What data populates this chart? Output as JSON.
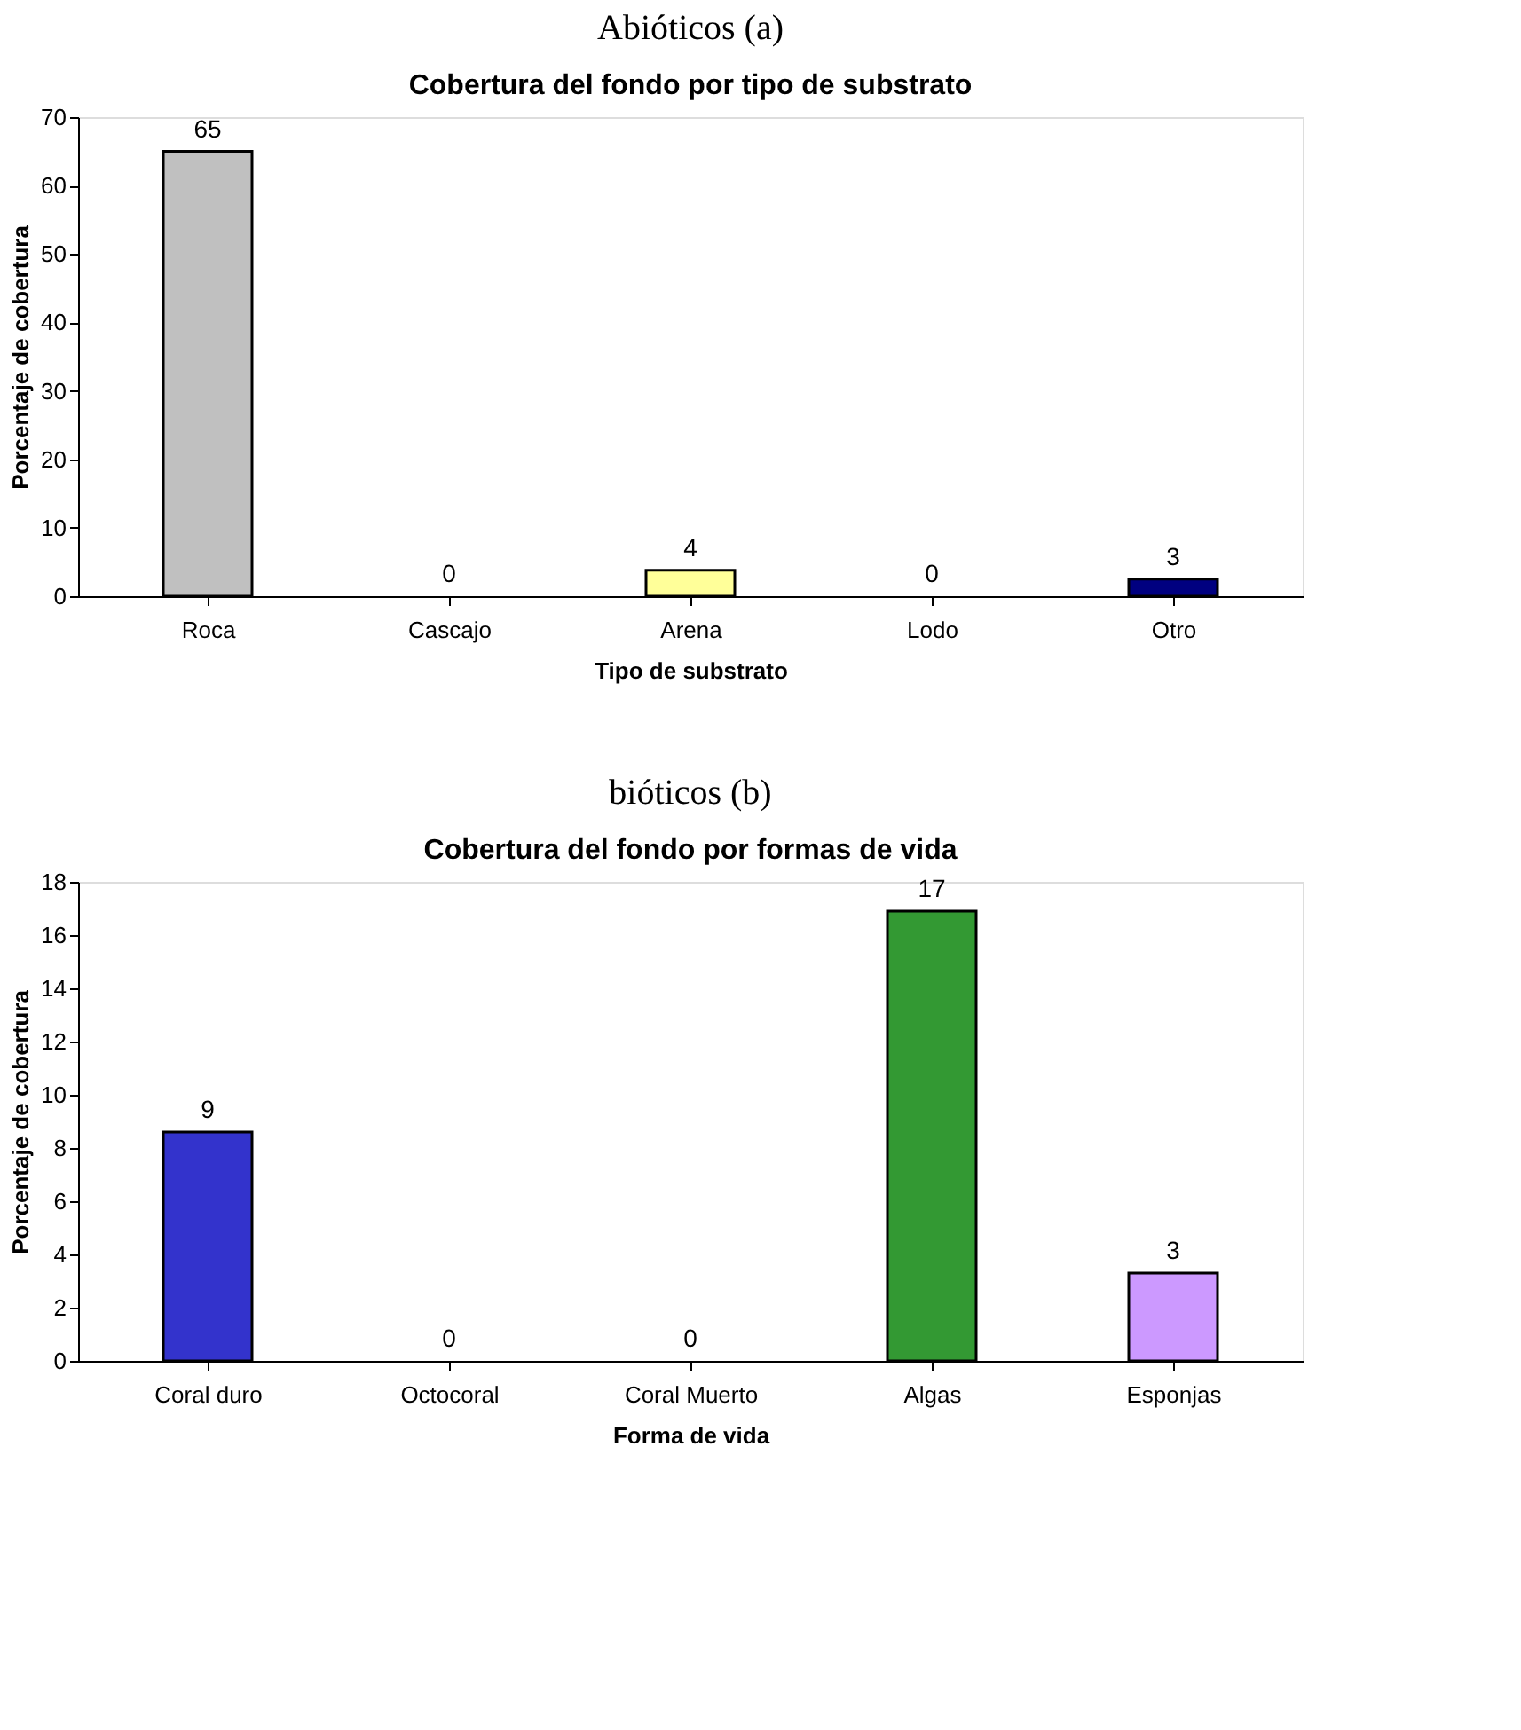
{
  "chart_data": [
    {
      "type": "bar",
      "title": "Abióticos (a)",
      "subtitle": "Cobertura del fondo por tipo de substrato",
      "xlabel": "Tipo de substrato",
      "ylabel": "Porcentaje de cobertura",
      "categories": [
        "Roca",
        "Cascajo",
        "Arena",
        "Lodo",
        "Otro"
      ],
      "values": [
        65,
        0,
        3.8,
        0,
        2.5
      ],
      "value_labels": [
        "65",
        "0",
        "4",
        "0",
        "3"
      ],
      "colors": [
        "#c0c0c0",
        "#c0c0c0",
        "#ffff99",
        "#c0c0c0",
        "#000080"
      ],
      "ylim": [
        0,
        70
      ],
      "yticks": [
        0,
        10,
        20,
        30,
        40,
        50,
        60,
        70
      ],
      "grid": false
    },
    {
      "type": "bar",
      "title": "bióticos (b)",
      "subtitle": "Cobertura del fondo por formas de vida",
      "xlabel": "Forma de vida",
      "ylabel": "Porcentaje de cobertura",
      "categories": [
        "Coral duro",
        "Octocoral",
        "Coral Muerto",
        "Algas",
        "Esponjas"
      ],
      "values": [
        8.6,
        0,
        0,
        16.9,
        3.3
      ],
      "value_labels": [
        "9",
        "0",
        "0",
        "17",
        "3"
      ],
      "colors": [
        "#3333cc",
        "#3333cc",
        "#3333cc",
        "#339933",
        "#cc99ff"
      ],
      "ylim": [
        0,
        18
      ],
      "yticks": [
        0,
        2,
        4,
        6,
        8,
        10,
        12,
        14,
        16,
        18
      ],
      "grid": false
    }
  ]
}
